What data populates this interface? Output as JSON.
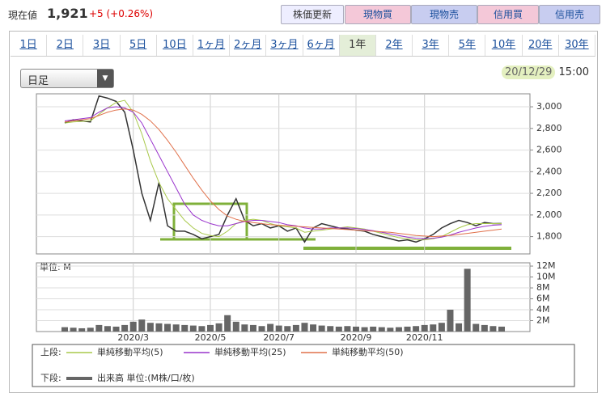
{
  "header": {
    "price_label": "現在値",
    "price": "1,921",
    "change": "+5 (+0.26%)",
    "buttons": [
      "株価更新",
      "現物買",
      "現物売",
      "信用買",
      "信用売"
    ]
  },
  "tabs": [
    "1日",
    "2日",
    "3日",
    "5日",
    "10日",
    "1ヶ月",
    "2ヶ月",
    "3ヶ月",
    "6ヶ月",
    "1年",
    "2年",
    "3年",
    "5年",
    "10年",
    "20年",
    "30年"
  ],
  "active_tab": 9,
  "interval": "日足",
  "timestamp": {
    "date": "20/12/29",
    "time": "15:00"
  },
  "legend_labels": {
    "upper": "上段:",
    "lower": "下段:"
  },
  "chart_data": [
    {
      "type": "line",
      "color": "#333333",
      "values": [
        2850,
        2880,
        2870,
        2860,
        3100,
        3080,
        3050,
        2950,
        2600,
        2200,
        1950,
        2300,
        1900,
        1850,
        1850,
        1820,
        1780,
        1800,
        1820,
        2000,
        2150,
        1950,
        1900,
        1920,
        1880,
        1900,
        1850,
        1880,
        1750,
        1880,
        1920,
        1900,
        1880,
        1870,
        1860,
        1850,
        1820,
        1800,
        1780,
        1760,
        1770,
        1750,
        1780,
        1820,
        1880,
        1920,
        1950,
        1930,
        1900,
        1930,
        1920,
        1921
      ],
      "series": [
        {
          "name": "単純移動平均(5)",
          "color": "#a8c84a",
          "values": [
            2850,
            2860,
            2865,
            2870,
            2930,
            2990,
            3040,
            3060,
            2950,
            2750,
            2500,
            2300,
            2150,
            2050,
            1950,
            1880,
            1830,
            1810,
            1800,
            1850,
            1920,
            1950,
            1960,
            1950,
            1920,
            1900,
            1890,
            1880,
            1840,
            1850,
            1860,
            1870,
            1880,
            1890,
            1880,
            1870,
            1850,
            1830,
            1810,
            1790,
            1780,
            1770,
            1770,
            1780,
            1800,
            1840,
            1880,
            1910,
            1920,
            1920,
            1920,
            1920
          ]
        },
        {
          "name": "単純移動平均(25)",
          "color": "#9933cc",
          "values": [
            2870,
            2880,
            2890,
            2900,
            2950,
            2990,
            3000,
            2990,
            2950,
            2850,
            2700,
            2550,
            2400,
            2250,
            2100,
            2000,
            1950,
            1920,
            1900,
            1900,
            1920,
            1940,
            1950,
            1950,
            1940,
            1930,
            1910,
            1900,
            1880,
            1870,
            1870,
            1880,
            1880,
            1880,
            1875,
            1865,
            1855,
            1840,
            1825,
            1810,
            1795,
            1785,
            1780,
            1785,
            1795,
            1815,
            1840,
            1860,
            1880,
            1895,
            1905,
            1910
          ]
        },
        {
          "name": "単純移動平均(50)",
          "color": "#e0704a",
          "values": [
            2860,
            2870,
            2880,
            2890,
            2920,
            2950,
            2970,
            2980,
            2970,
            2930,
            2870,
            2790,
            2690,
            2580,
            2460,
            2340,
            2230,
            2130,
            2050,
            1990,
            1960,
            1940,
            1930,
            1920,
            1910,
            1905,
            1900,
            1895,
            1890,
            1885,
            1880,
            1875,
            1870,
            1865,
            1860,
            1855,
            1850,
            1845,
            1840,
            1830,
            1820,
            1810,
            1805,
            1800,
            1805,
            1810,
            1820,
            1830,
            1840,
            1850,
            1860,
            1870
          ]
        }
      ],
      "ylim": [
        1640,
        3120
      ],
      "yticks": [
        {
          "value": 1800,
          "label": "1,800"
        },
        {
          "value": 2000,
          "label": "2,000"
        },
        {
          "value": 2200,
          "label": "2,200"
        },
        {
          "value": 2400,
          "label": "2,400"
        },
        {
          "value": 2600,
          "label": "2,600"
        },
        {
          "value": 2800,
          "label": "2,800"
        },
        {
          "value": 3000,
          "label": "3,000"
        }
      ],
      "grid": true
    },
    {
      "type": "bar",
      "unit_label": "単位: M",
      "categories": [
        null,
        null,
        null,
        null,
        null,
        null,
        null,
        null,
        "2020/3",
        null,
        null,
        null,
        null,
        null,
        null,
        null,
        null,
        "2020/5",
        null,
        null,
        null,
        null,
        null,
        null,
        null,
        "2020/7",
        null,
        null,
        null,
        null,
        null,
        null,
        null,
        null,
        "2020/9",
        null,
        null,
        null,
        null,
        null,
        null,
        null,
        "2020/11",
        null,
        null,
        null,
        null,
        null,
        null,
        null,
        null,
        null
      ],
      "series": [
        {
          "name": "出来高 単位:(M株/口/枚)",
          "color": "#666666",
          "values": [
            0.8,
            0.7,
            0.6,
            0.7,
            1.2,
            1.0,
            0.9,
            1.2,
            1.8,
            2.2,
            1.6,
            1.5,
            1.4,
            1.3,
            1.2,
            1.1,
            1.0,
            1.2,
            1.5,
            3.0,
            1.8,
            1.3,
            1.2,
            1.0,
            1.4,
            1.1,
            1.0,
            1.2,
            1.6,
            1.3,
            1.1,
            1.0,
            0.9,
            1.0,
            0.9,
            0.8,
            0.9,
            0.8,
            0.7,
            0.8,
            0.9,
            1.0,
            1.2,
            1.3,
            1.6,
            4.0,
            1.5,
            11.5,
            1.4,
            1.2,
            1.0,
            0.9
          ]
        }
      ],
      "ylim": [
        0,
        12.6
      ],
      "yticks": [
        {
          "value": 2,
          "label": "2M"
        },
        {
          "value": 4,
          "label": "4M"
        },
        {
          "value": 6,
          "label": "6M"
        },
        {
          "value": 8,
          "label": "8M"
        },
        {
          "value": 10,
          "label": "10M"
        },
        {
          "value": 12,
          "label": "12M"
        }
      ],
      "grid": true
    }
  ]
}
